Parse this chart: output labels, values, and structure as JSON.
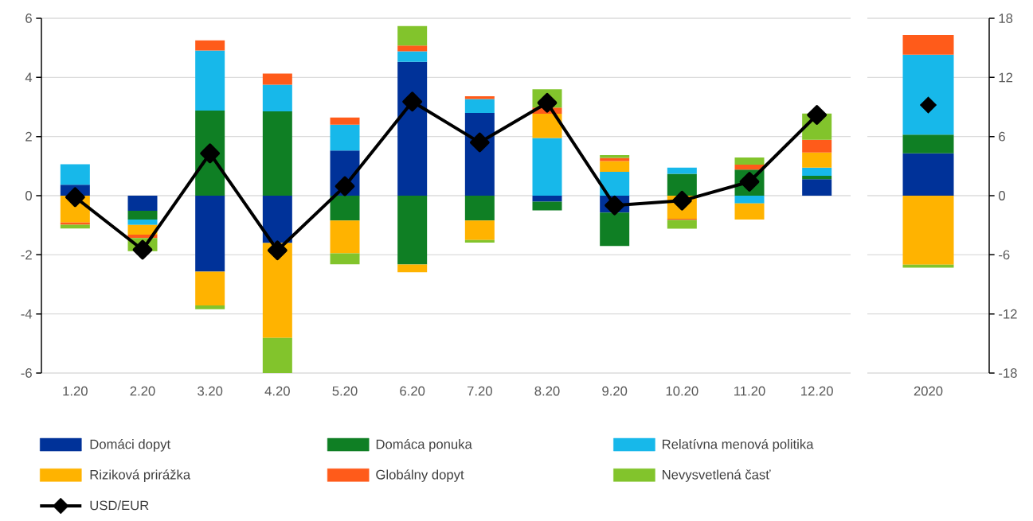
{
  "chart_data": [
    {
      "type": "bar",
      "stacked": true,
      "categories": [
        "1.20",
        "2.20",
        "3.20",
        "4.20",
        "5.20",
        "6.20",
        "7.20",
        "8.20",
        "9.20",
        "10.20",
        "11.20",
        "12.20"
      ],
      "ylim": [
        -6,
        6
      ],
      "yticks": [
        -6,
        -4,
        -2,
        0,
        2,
        4,
        6
      ],
      "grid": "y",
      "legend": "bottom",
      "series": [
        {
          "name": "Domáci dopyt",
          "color": "#003299",
          "values": [
            0.37,
            -0.51,
            -2.57,
            -1.6,
            1.53,
            4.53,
            2.8,
            -0.2,
            -0.57,
            null,
            null,
            0.56
          ]
        },
        {
          "name": "Domáca ponuka",
          "color": "#0F7F24",
          "values": [
            null,
            -0.3,
            2.88,
            2.85,
            -0.84,
            -2.33,
            -0.84,
            -0.3,
            -1.13,
            0.74,
            0.88,
            0.11
          ]
        },
        {
          "name": "Relatívna menová politika",
          "color": "#17B8EA",
          "values": [
            0.69,
            -0.18,
            2.03,
            0.9,
            0.87,
            0.35,
            0.47,
            1.95,
            0.81,
            0.21,
            -0.26,
            0.28
          ]
        },
        {
          "name": "Riziková prirážka",
          "color": "#FFB300",
          "values": [
            -0.91,
            -0.33,
            -1.14,
            -3.21,
            -1.11,
            -0.26,
            -0.66,
            0.82,
            0.36,
            -0.78,
            -0.55,
            0.51
          ]
        },
        {
          "name": "Globálny dopyt",
          "color": "#FF5B1A",
          "values": [
            -0.07,
            -0.11,
            0.34,
            0.38,
            0.24,
            0.2,
            0.09,
            0.21,
            0.11,
            -0.04,
            0.17,
            0.43
          ]
        },
        {
          "name": "Nevysvetlená časť",
          "color": "#82C42C",
          "values": [
            -0.13,
            -0.45,
            -0.13,
            -1.19,
            -0.37,
            0.66,
            -0.09,
            0.62,
            0.09,
            -0.3,
            0.24,
            0.89
          ]
        },
        {
          "name": "USD/EUR",
          "type": "line",
          "marker": "diamond",
          "color": "#000000",
          "values": [
            -0.05,
            -1.83,
            1.43,
            -1.85,
            0.32,
            3.18,
            1.8,
            3.14,
            -0.33,
            -0.17,
            0.47,
            2.73
          ]
        }
      ]
    },
    {
      "type": "bar",
      "stacked": true,
      "categories": [
        "2020"
      ],
      "y2lim": [
        -18,
        18
      ],
      "y2ticks": [
        -18,
        -12,
        -6,
        0,
        6,
        12,
        18
      ],
      "grid": "y",
      "series": [
        {
          "color": "#003299",
          "axis": "y2",
          "values": [
            4.3
          ]
        },
        {
          "color": "#0F7F24",
          "axis": "y2",
          "values": [
            1.9
          ]
        },
        {
          "color": "#17B8EA",
          "axis": "y2",
          "values": [
            8.1
          ]
        },
        {
          "color": "#FFB300",
          "axis": "y2",
          "values": [
            -7.0
          ]
        },
        {
          "color": "#FF5B1A",
          "axis": "y2",
          "values": [
            2.0
          ]
        },
        {
          "color": "#82C42C",
          "axis": "y2",
          "values": [
            -0.3
          ]
        },
        {
          "type": "scatter",
          "marker": "diamond",
          "color": "#000000",
          "axis": "y2",
          "values": [
            9.2
          ]
        }
      ]
    }
  ]
}
